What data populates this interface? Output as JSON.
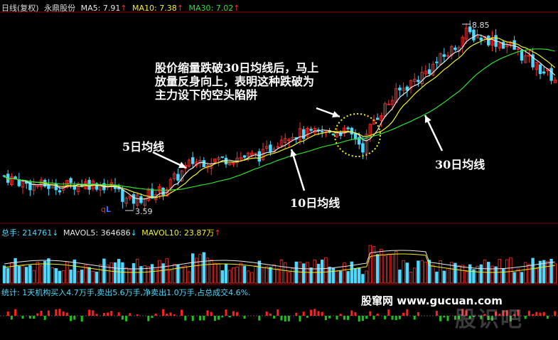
{
  "header": {
    "title": "日线(复权)",
    "stock": "永鼎股份",
    "ma5": {
      "label": "MA5:",
      "value": "7.91",
      "arrow": "↑",
      "color": "#e8e8e8"
    },
    "ma10": {
      "label": "MA10:",
      "value": "7.38",
      "arrow": "↑",
      "color": "#f2f222"
    },
    "ma30": {
      "label": "MA30:",
      "value": "7.02",
      "arrow": "↑",
      "color": "#2ee02e"
    }
  },
  "volume_header": {
    "label": "总手:",
    "value": "214761",
    "value_arrow": "↓",
    "mavol5_label": "MAVOL5:",
    "mavol5_value": "364686",
    "mavol5_arrow": "↓",
    "mavol10_label": "MAVOL10:",
    "mavol10_value": "23.87万",
    "mavol10_arrow": "↑"
  },
  "stat_header": {
    "text": "统计: 1天机构买入4.7万手,卖出5.6万手,净卖出1.0万手,占总成交4.6%."
  },
  "annotations": {
    "main_note": [
      "股价缩量跌破30日均线后，马上",
      "放量反身向上，表明这种跌破为",
      "主力设下的空头陷阱"
    ],
    "ma5_label": "5日均线",
    "ma10_label": "10日均线",
    "ma30_label": "30日均线"
  },
  "watermark": {
    "text": "股窜网  www.gucuan.com",
    "logo": "股识吧"
  },
  "markers": {
    "low_prefix": "q",
    "low_letter": "L"
  },
  "colors": {
    "up": "#ff3030",
    "down": "#4cd9ff",
    "ma5": "#e8e8e8",
    "ma10": "#f2f222",
    "ma30": "#2ee02e",
    "background": "#000000",
    "grid": "#8b0000",
    "highlight_circle": "#f2f222"
  },
  "chart_data": {
    "type": "candlestick",
    "price_high": 8.85,
    "price_low": 3.59,
    "price_high_label": "8.85",
    "price_low_label": "3.59",
    "ma5_last": 7.91,
    "ma10_last": 7.38,
    "ma30_last": 7.02,
    "volume_last": 214761,
    "mavol5_last": 364686,
    "mavol10_last": "23.87万",
    "highlight": "price briefly breaks below 30-day MA on low volume then rebounds on higher volume"
  }
}
